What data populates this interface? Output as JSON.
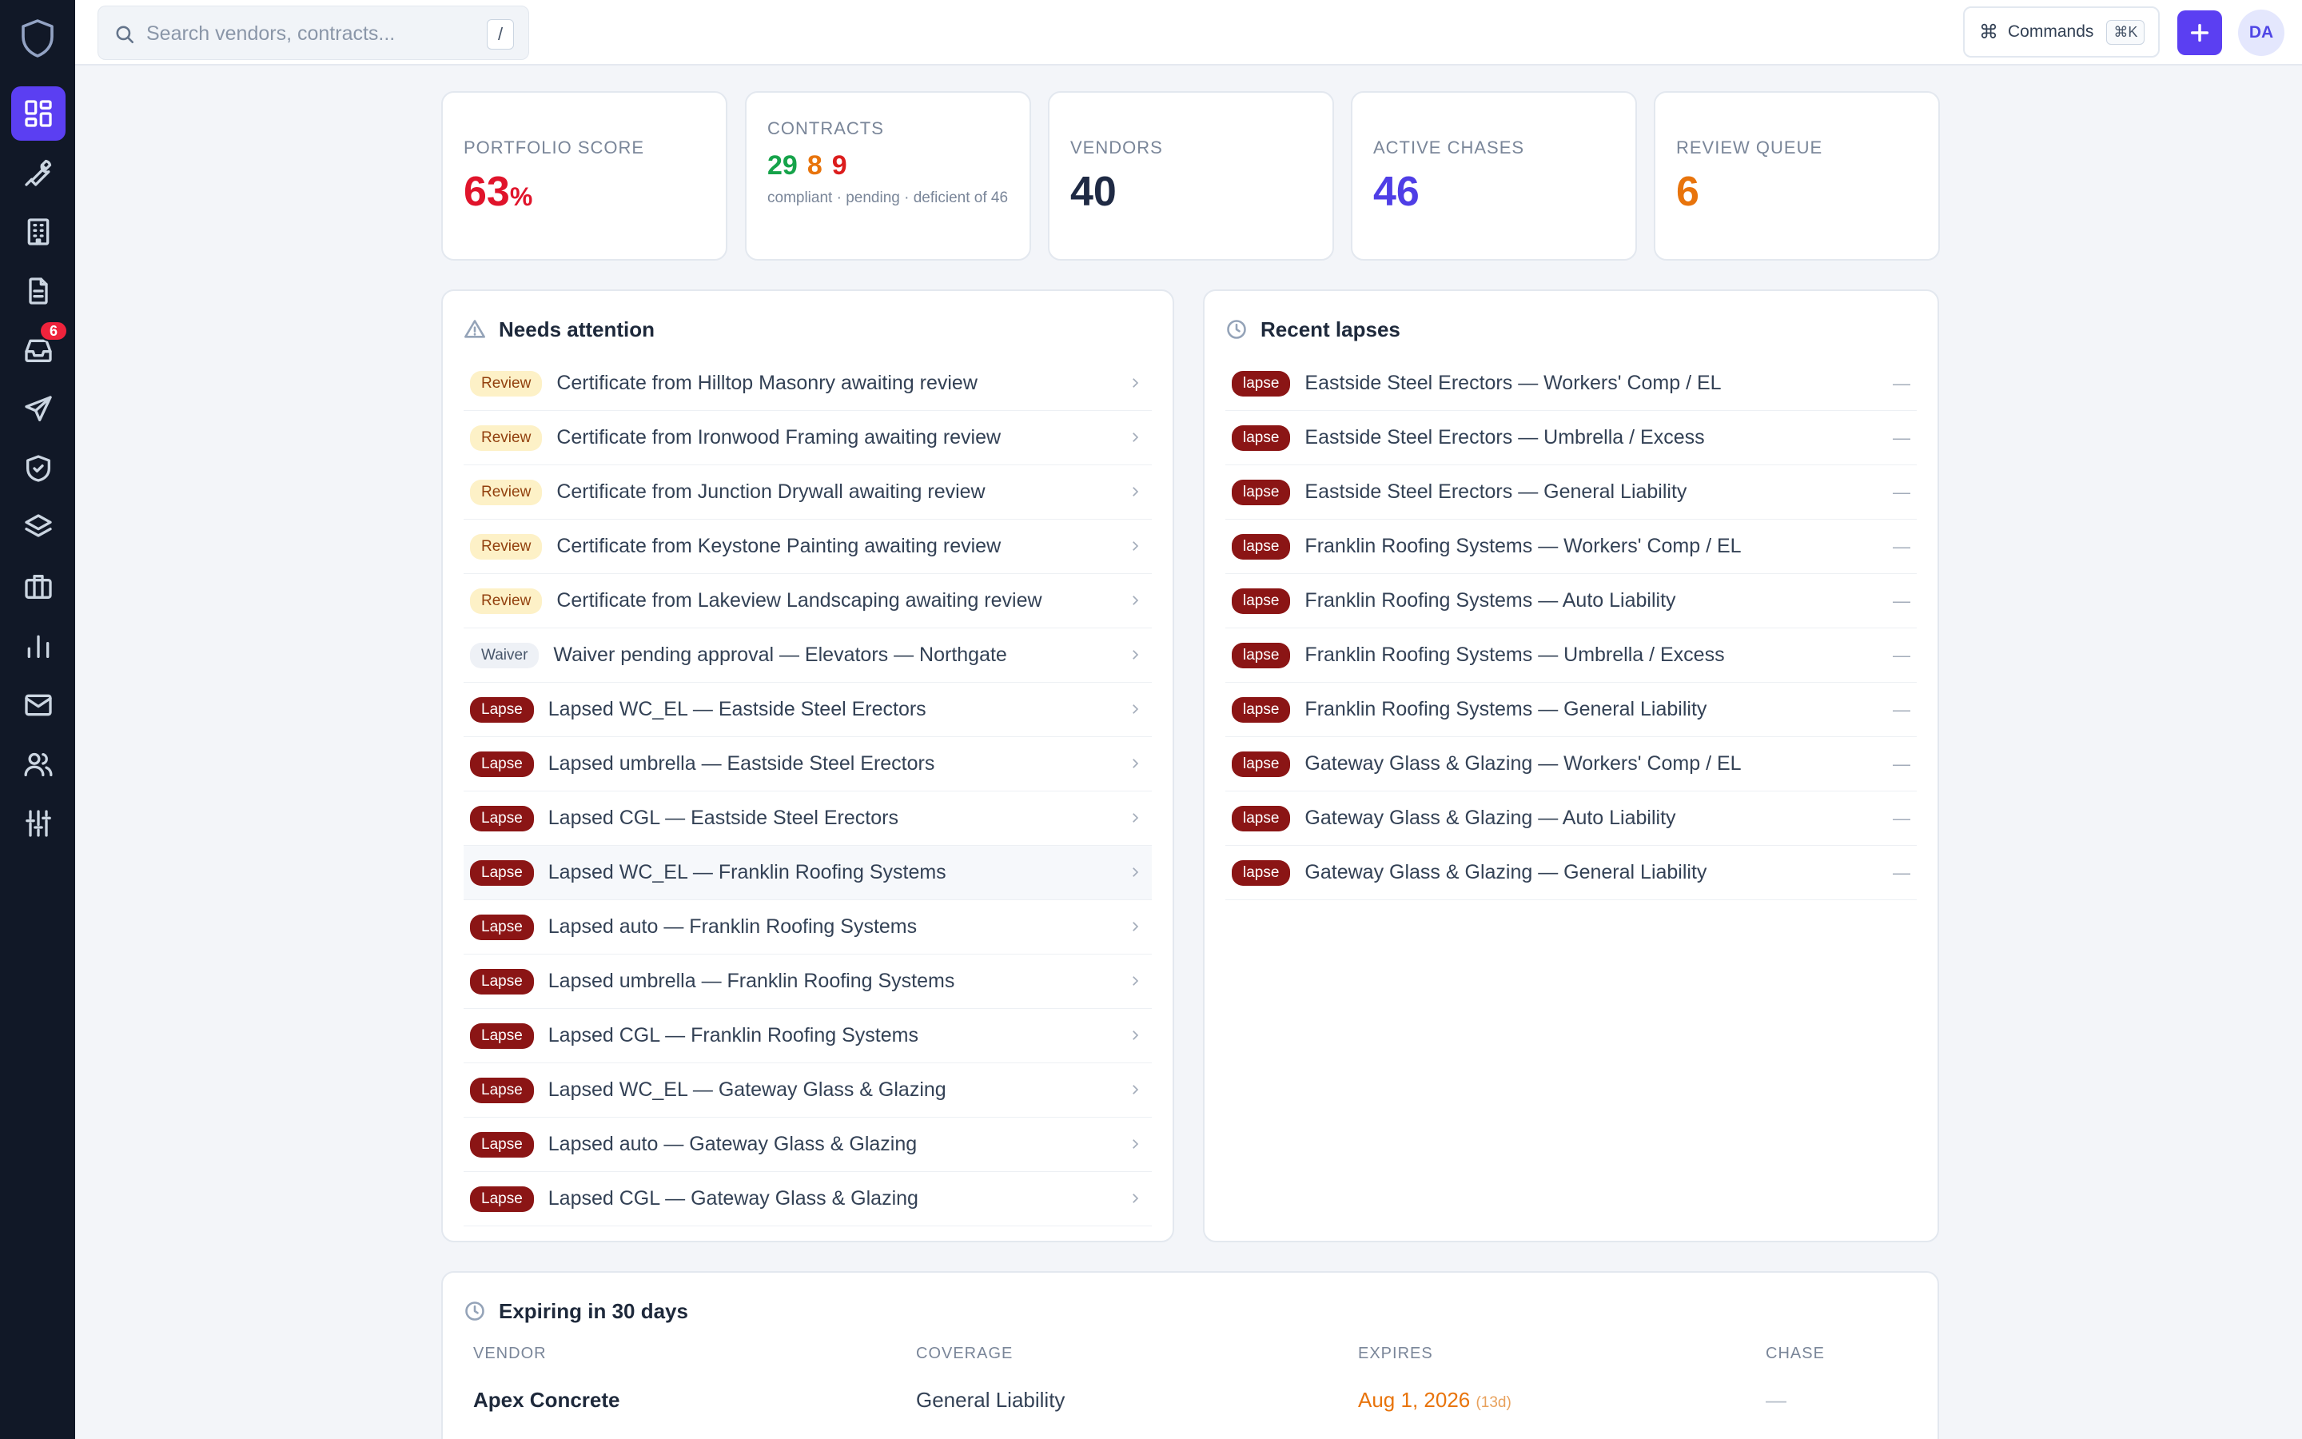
{
  "sidebar": {
    "logo_icon": "shield-icon",
    "items": [
      {
        "id": "dashboard",
        "icon": "grid-icon",
        "active": true
      },
      {
        "id": "tools",
        "icon": "wrench-icon"
      },
      {
        "id": "buildings",
        "icon": "building-icon"
      },
      {
        "id": "documents",
        "icon": "document-icon"
      },
      {
        "id": "inbox",
        "icon": "inbox-icon",
        "badge": "6"
      },
      {
        "id": "send",
        "icon": "send-icon"
      },
      {
        "id": "compliance",
        "icon": "shield-check-icon"
      },
      {
        "id": "layers",
        "icon": "layers-icon"
      },
      {
        "id": "portfolio",
        "icon": "briefcase-icon"
      },
      {
        "id": "reports",
        "icon": "bar-chart-icon"
      },
      {
        "id": "mail",
        "icon": "mail-icon"
      },
      {
        "id": "users",
        "icon": "users-icon"
      },
      {
        "id": "settings",
        "icon": "sliders-icon"
      }
    ]
  },
  "topbar": {
    "search_placeholder": "Search vendors, contracts...",
    "search_shortcut": "/",
    "commands_label": "Commands",
    "commands_shortcut": "⌘K",
    "avatar_initials": "DA"
  },
  "stats": {
    "portfolio_score": {
      "label": "Portfolio Score",
      "value": "63",
      "unit": "%"
    },
    "contracts": {
      "label": "Contracts",
      "compliant": "29",
      "pending": "8",
      "deficient": "9",
      "sub": "compliant · pending · deficient of 46"
    },
    "vendors": {
      "label": "Vendors",
      "value": "40"
    },
    "active_chases": {
      "label": "Active Chases",
      "value": "46"
    },
    "review_queue": {
      "label": "Review Queue",
      "value": "6"
    }
  },
  "needs_attention": {
    "title": "Needs attention",
    "items": [
      {
        "tag": "Review",
        "text": "Certificate from Hilltop Masonry awaiting review"
      },
      {
        "tag": "Review",
        "text": "Certificate from Ironwood Framing awaiting review"
      },
      {
        "tag": "Review",
        "text": "Certificate from Junction Drywall awaiting review"
      },
      {
        "tag": "Review",
        "text": "Certificate from Keystone Painting awaiting review"
      },
      {
        "tag": "Review",
        "text": "Certificate from Lakeview Landscaping awaiting review"
      },
      {
        "tag": "Waiver",
        "text": "Waiver pending approval — Elevators — Northgate"
      },
      {
        "tag": "Lapse",
        "text": "Lapsed WC_EL — Eastside Steel Erectors"
      },
      {
        "tag": "Lapse",
        "text": "Lapsed umbrella — Eastside Steel Erectors"
      },
      {
        "tag": "Lapse",
        "text": "Lapsed CGL — Eastside Steel Erectors"
      },
      {
        "tag": "Lapse",
        "text": "Lapsed WC_EL — Franklin Roofing Systems"
      },
      {
        "tag": "Lapse",
        "text": "Lapsed auto — Franklin Roofing Systems"
      },
      {
        "tag": "Lapse",
        "text": "Lapsed umbrella — Franklin Roofing Systems"
      },
      {
        "tag": "Lapse",
        "text": "Lapsed CGL — Franklin Roofing Systems"
      },
      {
        "tag": "Lapse",
        "text": "Lapsed WC_EL — Gateway Glass & Glazing"
      },
      {
        "tag": "Lapse",
        "text": "Lapsed auto — Gateway Glass & Glazing"
      },
      {
        "tag": "Lapse",
        "text": "Lapsed CGL — Gateway Glass & Glazing"
      }
    ]
  },
  "recent_lapses": {
    "title": "Recent lapses",
    "items": [
      {
        "tag": "lapse",
        "text": "Eastside Steel Erectors — Workers' Comp / EL",
        "value": "—"
      },
      {
        "tag": "lapse",
        "text": "Eastside Steel Erectors — Umbrella / Excess",
        "value": "—"
      },
      {
        "tag": "lapse",
        "text": "Eastside Steel Erectors — General Liability",
        "value": "—"
      },
      {
        "tag": "lapse",
        "text": "Franklin Roofing Systems — Workers' Comp / EL",
        "value": "—"
      },
      {
        "tag": "lapse",
        "text": "Franklin Roofing Systems — Auto Liability",
        "value": "—"
      },
      {
        "tag": "lapse",
        "text": "Franklin Roofing Systems — Umbrella / Excess",
        "value": "—"
      },
      {
        "tag": "lapse",
        "text": "Franklin Roofing Systems — General Liability",
        "value": "—"
      },
      {
        "tag": "lapse",
        "text": "Gateway Glass & Glazing — Workers' Comp / EL",
        "value": "—"
      },
      {
        "tag": "lapse",
        "text": "Gateway Glass & Glazing — Auto Liability",
        "value": "—"
      },
      {
        "tag": "lapse",
        "text": "Gateway Glass & Glazing — General Liability",
        "value": "—"
      }
    ]
  },
  "expiring": {
    "title": "Expiring in 30 days",
    "columns": {
      "vendor": "Vendor",
      "coverage": "Coverage",
      "expires": "Expires",
      "chase": "Chase"
    },
    "rows": [
      {
        "vendor": "Apex Concrete",
        "coverage": "General Liability",
        "expires": "Aug 1, 2026",
        "days": "(13d)",
        "chase": "—"
      }
    ]
  },
  "colors": {
    "accent": "#5b3ff2",
    "score_red": "#e0142b",
    "compliant_green": "#16a34a",
    "pending_orange": "#e8740c",
    "deficient_red": "#dc1d1d",
    "vendors_dark": "#1f2a44",
    "chases_purple": "#4f3ee6",
    "queue_orange": "#e8740c"
  }
}
